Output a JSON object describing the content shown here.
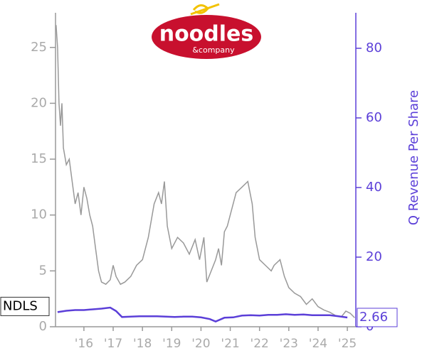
{
  "chart_data": {
    "type": "line",
    "logo": {
      "name": "noodles",
      "tagline": "&company"
    },
    "y2_label": "Q Revenue Per Share",
    "xlim": [
      2015.03,
      2025.29
    ],
    "xticks": [
      {
        "value": 2016,
        "label": "'16"
      },
      {
        "value": 2017,
        "label": "'17"
      },
      {
        "value": 2018,
        "label": "'18"
      },
      {
        "value": 2019,
        "label": "'19"
      },
      {
        "value": 2020,
        "label": "'20"
      },
      {
        "value": 2021,
        "label": "'21"
      },
      {
        "value": 2022,
        "label": "'22"
      },
      {
        "value": 2023,
        "label": "'23"
      },
      {
        "value": 2024,
        "label": "'24"
      },
      {
        "value": 2025,
        "label": "'25"
      }
    ],
    "ylim": [
      0,
      28.1
    ],
    "yticks": [
      0,
      5,
      10,
      15,
      20,
      25
    ],
    "y2lim": [
      0,
      90.2
    ],
    "y2ticks": [
      0,
      20,
      40,
      60,
      80
    ],
    "series": [
      {
        "name": "NDLS",
        "color": "#999999",
        "x": [
          2015.05,
          2015.1,
          2015.15,
          2015.2,
          2015.25,
          2015.3,
          2015.4,
          2015.5,
          2015.6,
          2015.7,
          2015.8,
          2015.9,
          2016.0,
          2016.1,
          2016.2,
          2016.3,
          2016.4,
          2016.5,
          2016.6,
          2016.75,
          2016.9,
          2017.0,
          2017.1,
          2017.25,
          2017.4,
          2017.6,
          2017.8,
          2018.0,
          2018.2,
          2018.4,
          2018.55,
          2018.65,
          2018.75,
          2018.85,
          2019.0,
          2019.2,
          2019.4,
          2019.6,
          2019.8,
          2019.95,
          2020.1,
          2020.2,
          2020.35,
          2020.5,
          2020.6,
          2020.7,
          2020.8,
          2020.9,
          2021.0,
          2021.2,
          2021.4,
          2021.6,
          2021.75,
          2021.85,
          2022.0,
          2022.2,
          2022.4,
          2022.5,
          2022.7,
          2022.85,
          2023.0,
          2023.2,
          2023.4,
          2023.6,
          2023.8,
          2024.0,
          2024.2,
          2024.4,
          2024.6,
          2024.8,
          2024.95,
          2025.1,
          2025.25
        ],
        "values": [
          27,
          25,
          20,
          18,
          20,
          16,
          14.5,
          15,
          13,
          11,
          12,
          10,
          12.5,
          11.5,
          10,
          9,
          7,
          5,
          4,
          3.8,
          4.2,
          5.5,
          4.5,
          3.8,
          4,
          4.5,
          5.5,
          6,
          8,
          11,
          12,
          11,
          13,
          9,
          7,
          8,
          7.5,
          6.5,
          7.8,
          6,
          8,
          4,
          5,
          6,
          7,
          5.5,
          8.5,
          9,
          10,
          12,
          12.5,
          13,
          11,
          8,
          6,
          5.5,
          5,
          5.5,
          6,
          4.5,
          3.5,
          3,
          2.7,
          2,
          2.5,
          1.8,
          1.5,
          1.3,
          1.0,
          0.9,
          1.4,
          1.2,
          0.8
        ]
      },
      {
        "color": "#5b3fd8",
        "axis": "y2",
        "x": [
          2015.1,
          2015.4,
          2015.7,
          2016.0,
          2016.3,
          2016.6,
          2016.9,
          2017.1,
          2017.3,
          2017.6,
          2017.9,
          2018.2,
          2018.5,
          2018.8,
          2019.1,
          2019.4,
          2019.7,
          2020.0,
          2020.3,
          2020.5,
          2020.8,
          2021.1,
          2021.4,
          2021.7,
          2022.0,
          2022.3,
          2022.6,
          2022.9,
          2023.2,
          2023.5,
          2023.8,
          2024.1,
          2024.4,
          2024.7,
          2025.0
        ],
        "values": [
          4.2,
          4.6,
          4.8,
          4.8,
          5.0,
          5.2,
          5.5,
          4.5,
          2.8,
          2.9,
          3.0,
          3.0,
          3.0,
          2.9,
          2.8,
          2.9,
          2.9,
          2.7,
          2.2,
          1.5,
          2.6,
          2.7,
          3.2,
          3.3,
          3.2,
          3.4,
          3.4,
          3.6,
          3.4,
          3.5,
          3.3,
          3.3,
          3.3,
          3.0,
          2.66
        ]
      }
    ]
  }
}
